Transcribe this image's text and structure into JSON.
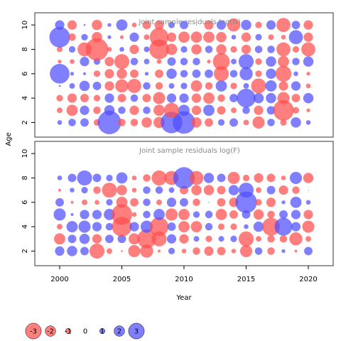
{
  "colors": {
    "negative": "#ff4d4d",
    "positive": "#4d4dff",
    "frame": "#333333",
    "panel_title": "#888888"
  },
  "chart_data": [
    {
      "type": "scatter",
      "subtype": "bubble-residual-grid",
      "title": "Joint sample residuals log(N)",
      "xlabel": "Year",
      "ylabel": "Age",
      "xlim": [
        1998,
        2022
      ],
      "ylim": [
        0.8,
        11
      ],
      "xticks": [
        2000,
        2005,
        2010,
        2015,
        2020
      ],
      "yticks": [
        2,
        4,
        6,
        8,
        10
      ],
      "years": [
        2000,
        2001,
        2002,
        2003,
        2004,
        2005,
        2006,
        2007,
        2008,
        2009,
        2010,
        2011,
        2012,
        2013,
        2014,
        2015,
        2016,
        2017,
        2018,
        2019,
        2020
      ],
      "ages": [
        2,
        3,
        4,
        5,
        6,
        7,
        8,
        9,
        10
      ],
      "residuals": [
        [
          0.5,
          0.8,
          0.9,
          -0.7,
          2.5,
          -0.8,
          -0.8,
          -1.1,
          -1.2,
          2.3,
          2.4,
          -1.1,
          -0.9,
          0.7,
          0.9,
          -0.6,
          -1.3,
          0.8,
          -0.7,
          1.1,
          0.5
        ],
        [
          -0.6,
          -1.2,
          1.0,
          -0.8,
          1.1,
          0.8,
          -1.0,
          0.8,
          -1.2,
          -1.6,
          1.2,
          -1.0,
          1.2,
          -0.9,
          -0.6,
          0.8,
          -1.0,
          0.9,
          -2.2,
          -0.7,
          -0.4
        ],
        [
          -0.7,
          -1.0,
          -0.9,
          -0.7,
          1.0,
          -0.9,
          0.8,
          -0.9,
          -1.3,
          1.0,
          1.0,
          -1.0,
          -1.2,
          -0.8,
          0.9,
          2.0,
          1.1,
          1.1,
          -1.3,
          -0.9,
          1.1
        ],
        [
          0.2,
          0.6,
          1.1,
          0.9,
          -1.0,
          -1.4,
          -1.5,
          0.8,
          -0.8,
          0.6,
          0.7,
          -1.2,
          -0.8,
          1.2,
          -0.7,
          0.6,
          -1.6,
          1.2,
          -1.0,
          1.0,
          -0.5
        ],
        [
          2.1,
          0.4,
          0.3,
          -0.7,
          -1.0,
          -1.1,
          -0.9,
          0.4,
          -0.9,
          1.1,
          0.8,
          0.9,
          0.9,
          -1.6,
          0.8,
          1.4,
          -0.7,
          1.1,
          -1.7,
          0.5,
          -0.4
        ],
        [
          -0.4,
          -0.5,
          1.0,
          0.7,
          -1.0,
          -1.6,
          0.8,
          0.6,
          -0.5,
          0.9,
          0.8,
          0.8,
          -0.4,
          -1.8,
          0.6,
          1.6,
          -0.7,
          1.1,
          -1.2,
          0.8,
          1.1
        ],
        [
          -0.6,
          0.7,
          -1.5,
          -2.4,
          -0.5,
          0.5,
          -1.0,
          0.6,
          -2.1,
          -1.2,
          0.7,
          -1.1,
          0.8,
          -1.1,
          -0.7,
          -1.0,
          0.8,
          0.8,
          -1.5,
          -0.7,
          -1.5
        ],
        [
          2.2,
          -0.8,
          0.7,
          -1.1,
          0.4,
          -0.4,
          1.0,
          -0.6,
          -2.0,
          -1.0,
          -1.2,
          -1.2,
          -1.2,
          -1.1,
          0.5,
          -1.0,
          0.7,
          -0.6,
          -0.5,
          1.5,
          -1.0
        ],
        [
          1.0,
          -1.0,
          0.2,
          -1.1,
          0.4,
          1.2,
          -0.5,
          -0.9,
          -1.0,
          0.7,
          0.9,
          0.1,
          -1.0,
          1.0,
          -1.4,
          1.1,
          -0.7,
          1.0,
          -1.5,
          0.9,
          -1.0
        ]
      ]
    },
    {
      "type": "scatter",
      "subtype": "bubble-residual-grid",
      "title": "Joint sample residuals log(F)",
      "xlabel": "Year",
      "ylabel": "Age",
      "xlim": [
        1998,
        2022
      ],
      "ylim": [
        0.8,
        11
      ],
      "xticks": [
        2000,
        2005,
        2010,
        2015,
        2020
      ],
      "yticks": [
        2,
        4,
        6,
        8,
        10
      ],
      "years": [
        2000,
        2001,
        2002,
        2003,
        2004,
        2005,
        2006,
        2007,
        2008,
        2009,
        2010,
        2011,
        2012,
        2013,
        2014,
        2015,
        2016,
        2017,
        2018,
        2019,
        2020
      ],
      "ages": [
        2,
        3,
        4,
        5,
        6,
        7,
        8
      ],
      "residuals": [
        [
          1.0,
          1.1,
          0.9,
          -1.6,
          -0.6,
          -0.2,
          -1.3,
          -1.4,
          -0.3,
          0.7,
          -0.5,
          -0.8,
          -1.0,
          -0.9,
          -0.5,
          -1.3,
          0.8,
          -0.8,
          0.4,
          -0.3,
          0.9
        ],
        [
          -1.2,
          0.9,
          1.1,
          -1.0,
          0.9,
          0.9,
          -1.2,
          -2.0,
          -1.6,
          1.0,
          -1.0,
          0.6,
          -0.7,
          0.6,
          0.7,
          -1.6,
          -0.6,
          -0.8,
          -0.8,
          -1.4,
          -0.6
        ],
        [
          -0.6,
          1.2,
          1.3,
          1.0,
          0.8,
          -2.1,
          1.0,
          1.3,
          -2.0,
          0.9,
          -1.2,
          -1.2,
          0.8,
          -0.7,
          -0.7,
          0.5,
          1.1,
          -1.9,
          1.9,
          1.0,
          -1.3
        ],
        [
          1.3,
          0.3,
          1.0,
          1.0,
          1.2,
          -2.2,
          -0.5,
          0.8,
          1.2,
          -1.3,
          -1.2,
          0.7,
          0.8,
          -1.2,
          -0.9,
          0.9,
          -1.1,
          -0.8,
          0.9,
          1.0,
          -1.0
        ],
        [
          0.9,
          -0.3,
          -0.6,
          -0.5,
          0.7,
          -1.2,
          -0.9,
          0.8,
          -0.6,
          1.0,
          0.9,
          -0.8,
          0.1,
          -0.9,
          -1.0,
          2.3,
          -0.7,
          -1.0,
          0.4,
          1.2,
          0.5
        ],
        [
          -0.3,
          0.5,
          0.7,
          -0.8,
          -1.6,
          -1.1,
          -0.5,
          0.8,
          0.8,
          0.6,
          -0.9,
          -1.1,
          -1.1,
          -0.9,
          1.1,
          1.6,
          -0.6,
          0.9,
          -1.0,
          -0.8,
          -0.1
        ],
        [
          0.5,
          0.9,
          1.6,
          0.9,
          0.7,
          1.2,
          -0.5,
          -0.8,
          -1.6,
          -1.5,
          2.3,
          -1.5,
          1.1,
          0.9,
          -1.3,
          -0.7,
          -1.0,
          -0.9,
          -0.5,
          1.3,
          -1.1
        ]
      ]
    }
  ],
  "legend": {
    "items": [
      {
        "value": -3,
        "label": "-3"
      },
      {
        "value": -2,
        "label": "-2"
      },
      {
        "value": -1,
        "label": "-1"
      },
      {
        "value": 0,
        "label": "0"
      },
      {
        "value": 1,
        "label": "1"
      },
      {
        "value": 2,
        "label": "2"
      },
      {
        "value": 3,
        "label": "3"
      }
    ]
  }
}
